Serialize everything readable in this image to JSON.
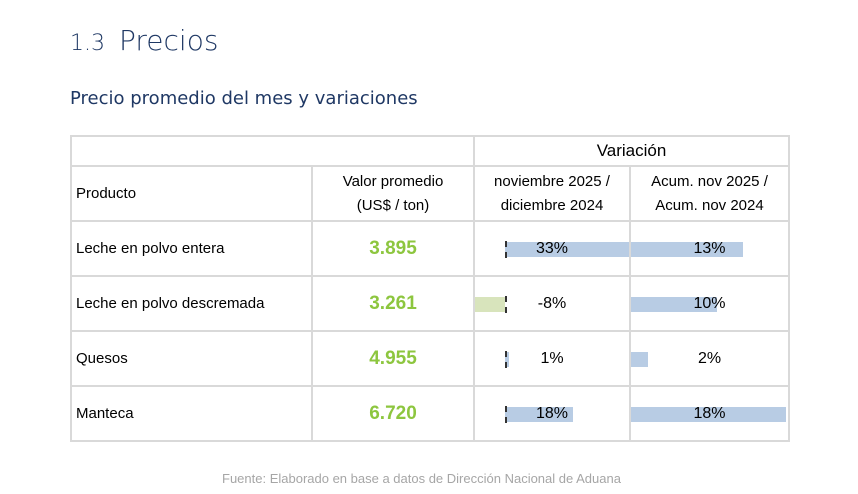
{
  "section": {
    "number": "1.3",
    "title": "Precios"
  },
  "subtitle": "Precio promedio del mes y variaciones",
  "table": {
    "group_header": "Variación",
    "headers": {
      "product": "Producto",
      "value_line1": "Valor promedio",
      "value_line2": "(US$ / ton)",
      "var1_line1": "noviembre 2025 /",
      "var1_line2": "diciembre 2024",
      "var2_line1": "Acum. nov 2025 /",
      "var2_line2": "Acum. nov 2024"
    },
    "rows": [
      {
        "product": "Leche en polvo entera",
        "value": "3.895",
        "var1": "33%",
        "var1_num": 33,
        "var2": "13%",
        "var2_num": 13
      },
      {
        "product": "Leche en polvo descremada",
        "value": "3.261",
        "var1": "-8%",
        "var1_num": -8,
        "var2": "10%",
        "var2_num": 10
      },
      {
        "product": "Quesos",
        "value": "4.955",
        "var1": "1%",
        "var1_num": 1,
        "var2": "2%",
        "var2_num": 2
      },
      {
        "product": "Manteca",
        "value": "6.720",
        "var1": "18%",
        "var1_num": 18,
        "var2": "18%",
        "var2_num": 18
      }
    ]
  },
  "colors": {
    "title": "#1f3864",
    "value": "#8dc63f",
    "bar_pos": "#b8cce4",
    "bar_neg": "#d8e4bc"
  },
  "footer": "Fuente: Elaborado en base a datos de Dirección Nacional de Aduana"
}
